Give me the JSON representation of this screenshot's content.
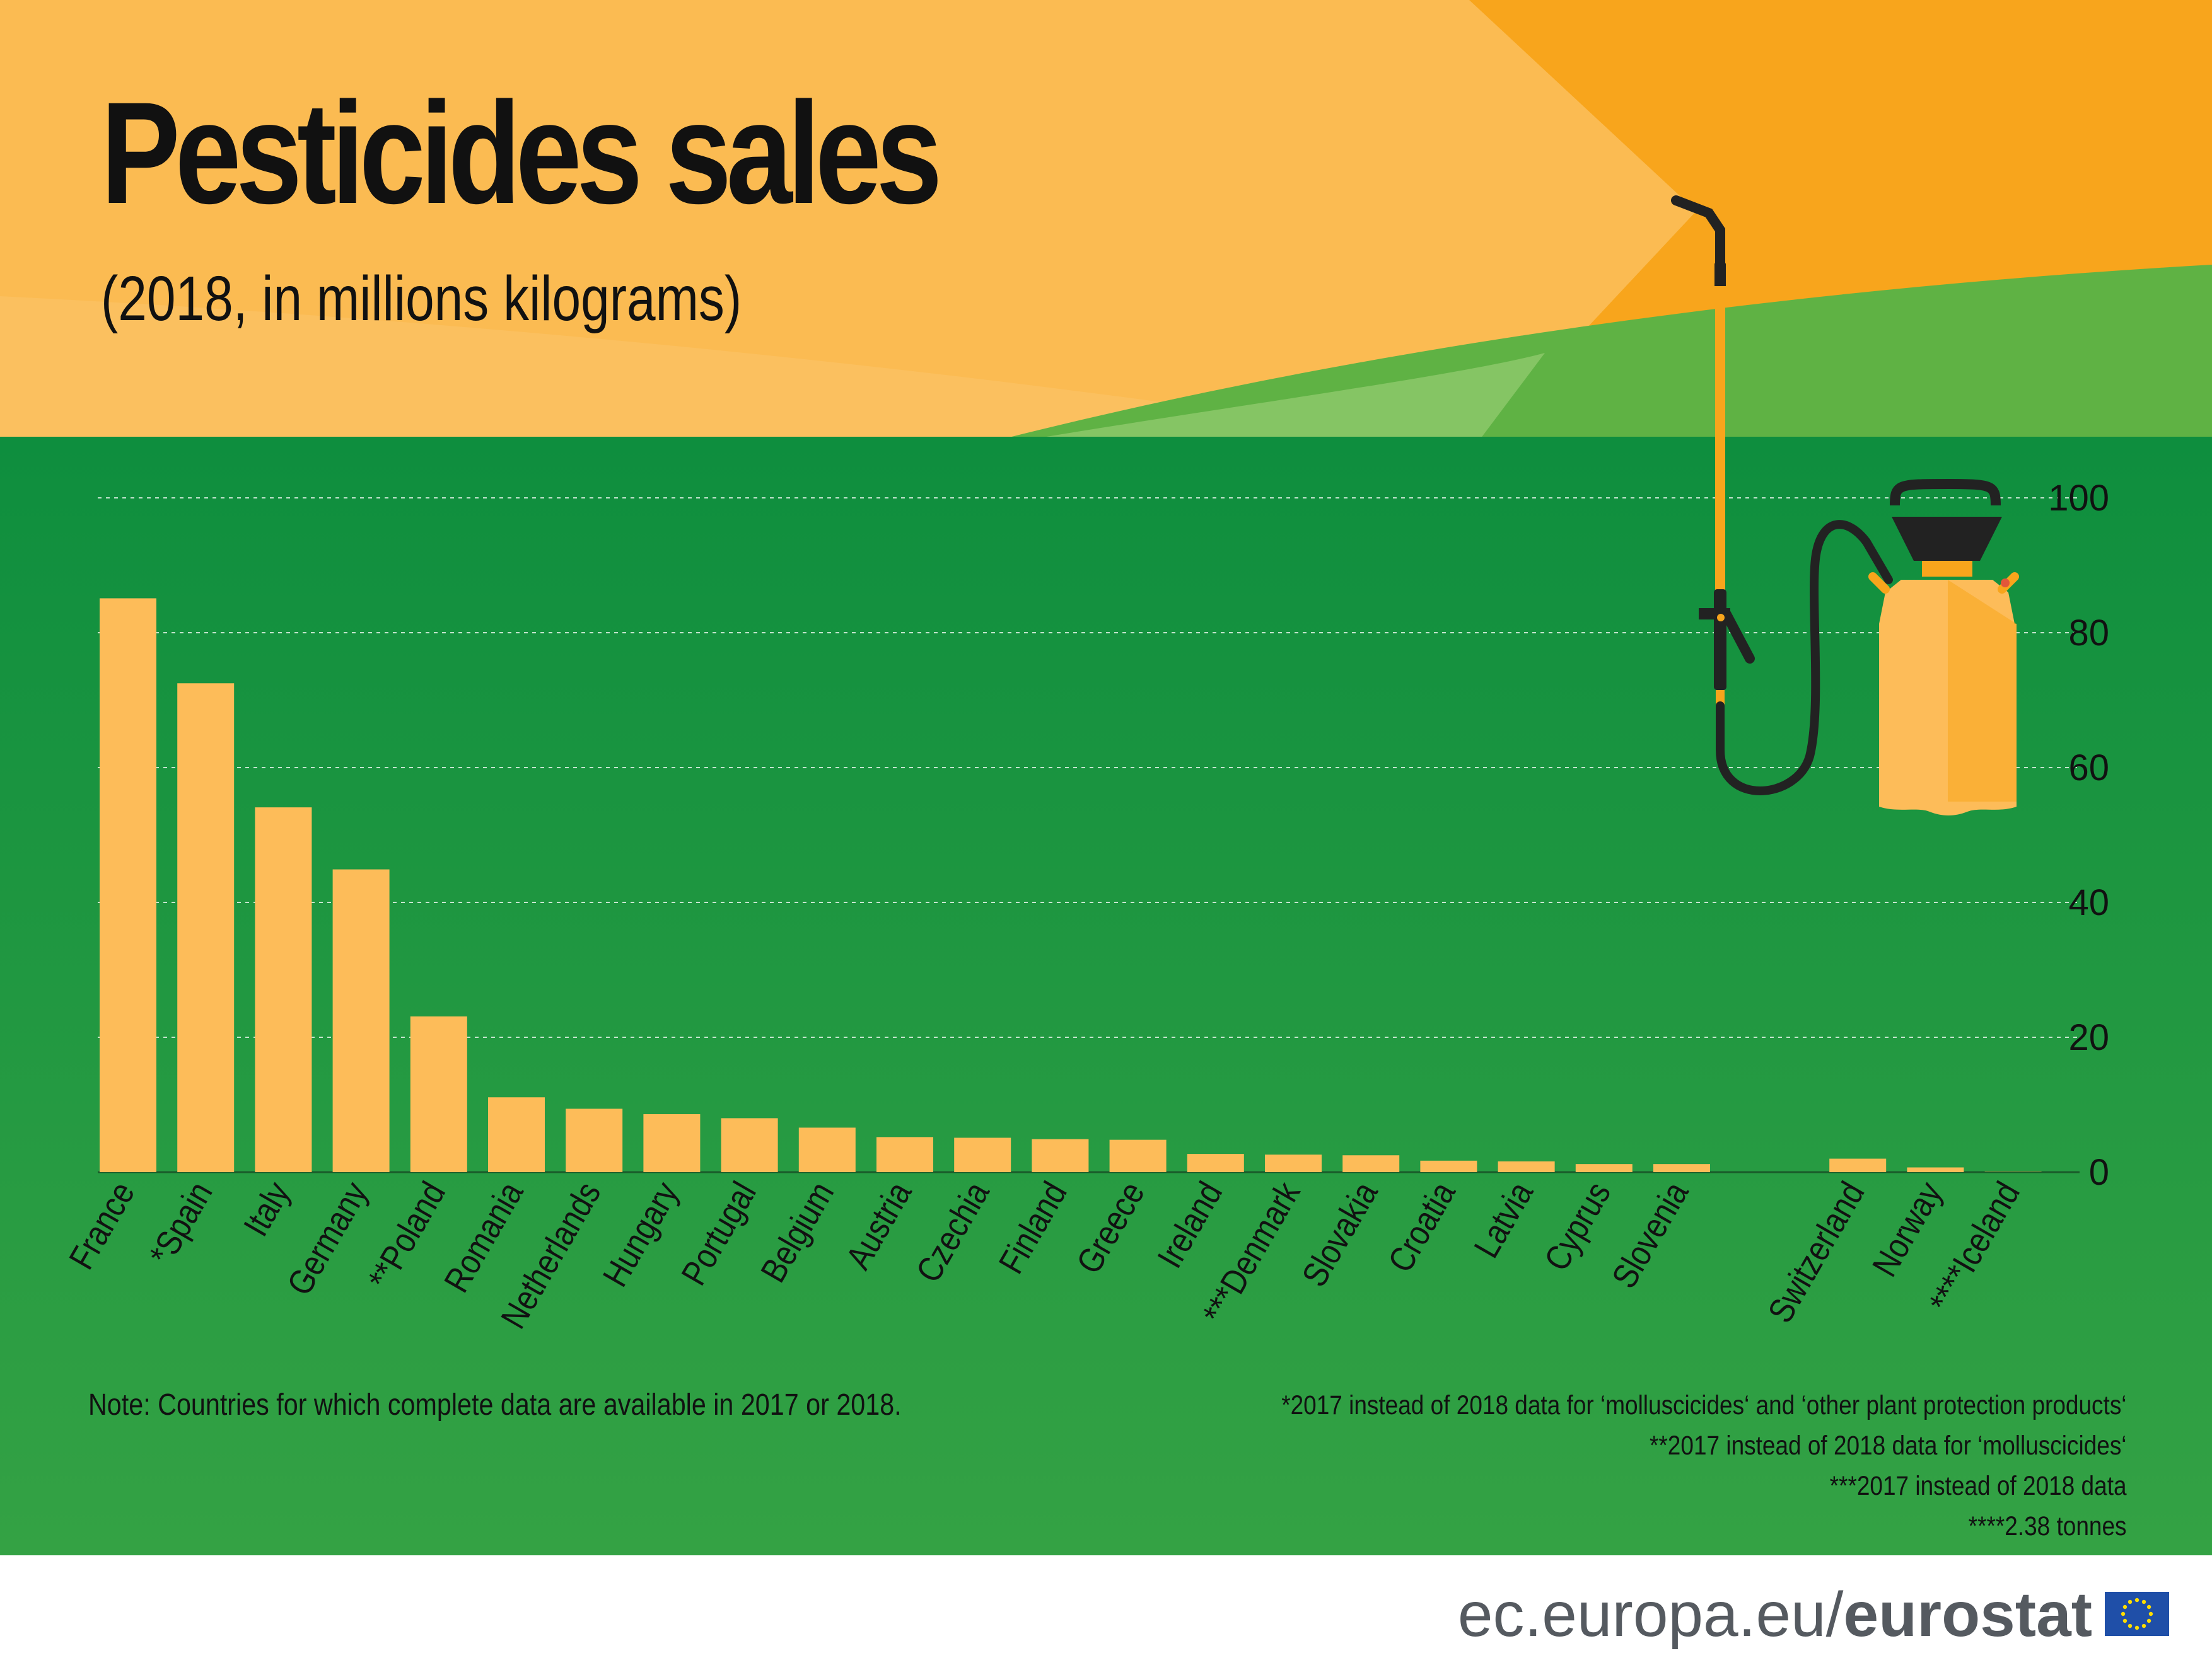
{
  "title": "Pesticides sales",
  "subtitle": "(2018, in millions kilograms)",
  "note": "Note: Countries for which complete data are available in 2017 or 2018.",
  "footnotes": [
    "*2017 instead of 2018 data for ‘molluscicides‘ and ‘other plant protection products‘",
    "**2017 instead of 2018 data for ‘molluscicides‘",
    "***2017 instead of 2018 data",
    "****2.38 tonnes"
  ],
  "footer": {
    "url_prefix": "ec.europa.eu/",
    "url_brand": "eurostat"
  },
  "icons": [
    "pressure-sprayer-icon",
    "eu-flag-icon"
  ],
  "colors": {
    "bar": "#FDBC59",
    "green_background": "#2A9A45",
    "orange_sky": "#F8A51C",
    "light_orange": "#FBBB52",
    "text": "#111111"
  },
  "chart_data": {
    "type": "bar",
    "title": "Pesticides sales",
    "subtitle": "(2018, in millions kilograms)",
    "xlabel": "",
    "ylabel": "",
    "ylim": [
      0,
      100
    ],
    "yticks": [
      0,
      20,
      40,
      60,
      80,
      100
    ],
    "grid": true,
    "y_axis_side": "right",
    "categories": [
      "France",
      "*Spain",
      "Italy",
      "Germany",
      "**Poland",
      "Romania",
      "Netherlands",
      "Hungary",
      "Portugal",
      "Belgium",
      "Austria",
      "Czechia",
      "Finland",
      "Greece",
      "Ireland",
      "***Denmark",
      "Slovakia",
      "Croatia",
      "Latvia",
      "Cyprus",
      "Slovenia",
      "Switzerland",
      "Norway",
      "****Iceland"
    ],
    "values": [
      85.1,
      72.5,
      54.1,
      44.9,
      23.1,
      11.1,
      9.4,
      8.6,
      8.0,
      6.6,
      5.2,
      5.1,
      4.9,
      4.8,
      2.7,
      2.6,
      2.5,
      1.7,
      1.6,
      1.2,
      1.2,
      2.0,
      0.7,
      0.002
    ]
  }
}
